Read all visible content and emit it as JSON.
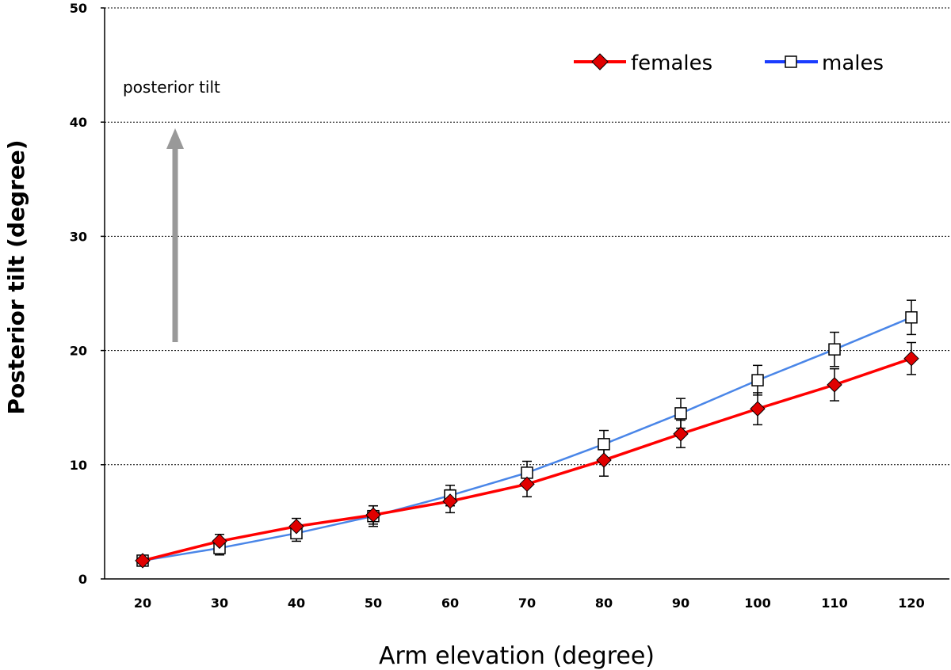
{
  "chart_data": {
    "type": "line",
    "title": "",
    "xlabel": "Arm elevation (degree)",
    "ylabel": "Posterior tilt (degree)",
    "x": [
      20,
      30,
      40,
      50,
      60,
      70,
      80,
      90,
      100,
      110,
      120
    ],
    "xlim": [
      15,
      125
    ],
    "ylim": [
      0,
      50
    ],
    "yticks": [
      0,
      10,
      20,
      30,
      40,
      50
    ],
    "grid": "horizontal dotted",
    "legend_position": "top-right",
    "annotation": "posterior tilt",
    "series": [
      {
        "name": "females",
        "color": "#ff0000",
        "marker": "diamond-filled",
        "marker_color": "#e00000",
        "values": [
          1.6,
          3.3,
          4.6,
          5.6,
          6.8,
          8.3,
          10.4,
          12.7,
          14.9,
          17.0,
          19.3
        ],
        "error": [
          0.4,
          0.6,
          0.7,
          0.8,
          1.0,
          1.1,
          1.4,
          1.2,
          1.4,
          1.4,
          1.4
        ]
      },
      {
        "name": "males",
        "color": "#4a86e8",
        "marker": "square-open",
        "marker_color": "#000000",
        "values": [
          1.6,
          2.7,
          4.0,
          5.5,
          7.3,
          9.3,
          11.8,
          14.5,
          17.4,
          20.1,
          22.9
        ],
        "error": [
          0.4,
          0.6,
          0.7,
          0.9,
          0.9,
          1.0,
          1.2,
          1.3,
          1.3,
          1.5,
          1.5
        ]
      }
    ]
  }
}
